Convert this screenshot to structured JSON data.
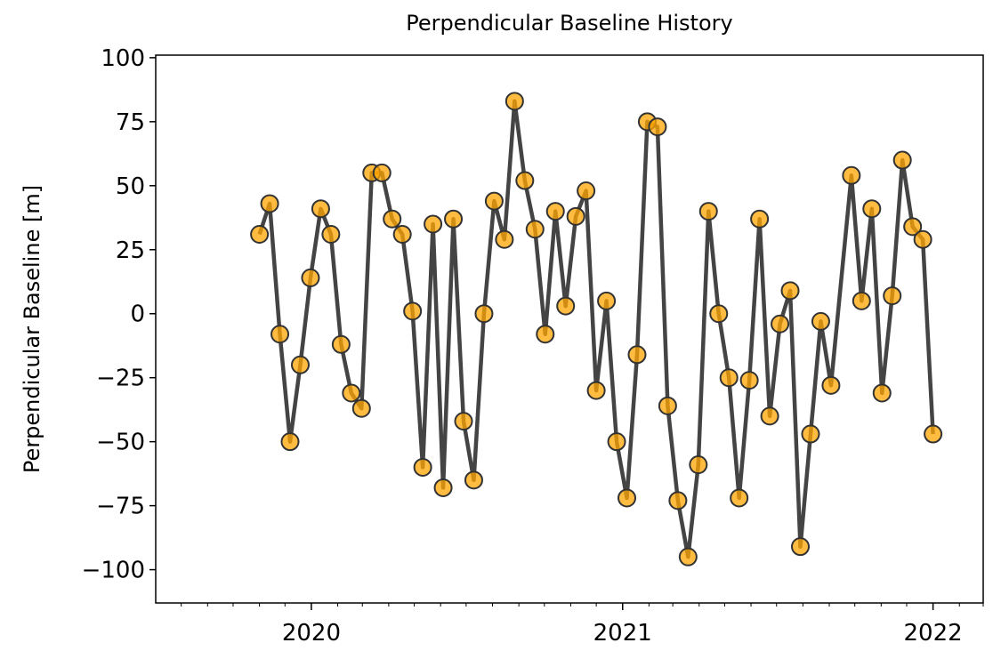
{
  "chart_data": {
    "type": "line",
    "title": "Perpendicular Baseline History",
    "y_label": "Perpendicular Baseline [m]",
    "x": [
      "2019-11-01",
      "2019-11-13",
      "2019-11-25",
      "2019-12-07",
      "2019-12-19",
      "2019-12-31",
      "2020-01-12",
      "2020-01-24",
      "2020-02-05",
      "2020-02-17",
      "2020-02-29",
      "2020-03-12",
      "2020-03-24",
      "2020-04-05",
      "2020-04-17",
      "2020-04-29",
      "2020-05-11",
      "2020-05-23",
      "2020-06-04",
      "2020-06-16",
      "2020-06-28",
      "2020-07-10",
      "2020-07-22",
      "2020-08-03",
      "2020-08-15",
      "2020-08-27",
      "2020-09-08",
      "2020-09-20",
      "2020-10-02",
      "2020-10-14",
      "2020-10-26",
      "2020-11-07",
      "2020-11-19",
      "2020-12-01",
      "2020-12-13",
      "2020-12-25",
      "2021-01-06",
      "2021-01-18",
      "2021-01-30",
      "2021-02-11",
      "2021-02-23",
      "2021-03-07",
      "2021-03-19",
      "2021-03-31",
      "2021-04-12",
      "2021-04-24",
      "2021-05-06",
      "2021-05-18",
      "2021-05-30",
      "2021-06-11",
      "2021-06-23",
      "2021-07-05",
      "2021-07-17",
      "2021-07-29",
      "2021-08-10",
      "2021-08-22",
      "2021-09-03",
      "2021-09-27",
      "2021-10-09",
      "2021-10-21",
      "2021-11-02",
      "2021-11-14",
      "2021-11-26",
      "2021-12-08",
      "2021-12-20",
      "2022-01-01"
    ],
    "series": [
      {
        "name": "Perpendicular Baseline",
        "color": "#444444",
        "marker_color": "#ffa500",
        "values": [
          31,
          43,
          -8,
          -50,
          -20,
          14,
          41,
          31,
          -12,
          -31,
          -37,
          55,
          55,
          37,
          31,
          1,
          -60,
          35,
          -68,
          37,
          -42,
          -65,
          0,
          44,
          29,
          83,
          52,
          33,
          -8,
          40,
          3,
          38,
          48,
          -30,
          5,
          -50,
          -72,
          -16,
          75,
          73,
          -36,
          -73,
          -95,
          -59,
          40,
          0,
          -25,
          -72,
          -26,
          37,
          -40,
          -4,
          9,
          -91,
          -47,
          -3,
          -28,
          54,
          5,
          41,
          -31,
          7,
          60,
          34,
          29,
          -47
        ]
      }
    ],
    "xlim": [
      "2019-07-02",
      "2022-03-01"
    ],
    "xticks": [
      {
        "value": "2020-01-01",
        "label": "2020"
      },
      {
        "value": "2021-01-01",
        "label": "2021"
      },
      {
        "value": "2022-01-01",
        "label": "2022"
      }
    ],
    "ylim": [
      -113,
      101
    ],
    "yticks": [
      {
        "value": -100,
        "label": "−100"
      },
      {
        "value": -75,
        "label": "−75"
      },
      {
        "value": -50,
        "label": "−50"
      },
      {
        "value": -25,
        "label": "−25"
      },
      0,
      25,
      50,
      75,
      100
    ],
    "grid": false
  }
}
